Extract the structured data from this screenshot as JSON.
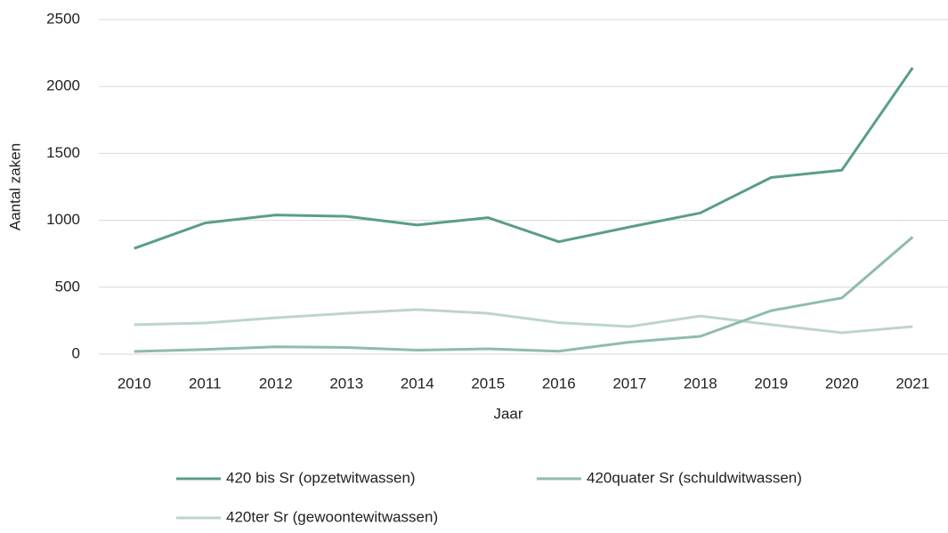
{
  "chart_data": {
    "type": "line",
    "x_label": "Jaar",
    "y_label": "Aantal zaken",
    "categories": [
      "2010",
      "2011",
      "2012",
      "2013",
      "2014",
      "2015",
      "2016",
      "2017",
      "2018",
      "2019",
      "2020",
      "2021"
    ],
    "series": [
      {
        "name": "420 bis Sr (opzetwitwassen)",
        "color": "#5a9e85",
        "values": [
          790,
          980,
          1040,
          1030,
          965,
          1020,
          840,
          950,
          1055,
          1320,
          1375,
          2140
        ]
      },
      {
        "name": "420quater Sr (schuldwitwassen)",
        "color": "#8fbcaa",
        "values": [
          20,
          35,
          55,
          50,
          30,
          40,
          22,
          90,
          133,
          325,
          420,
          875
        ]
      },
      {
        "name": "420ter Sr (gewoontewitwassen)",
        "color": "#bcd6c9",
        "values": [
          220,
          233,
          272,
          305,
          333,
          305,
          235,
          206,
          285,
          220,
          160,
          206
        ]
      }
    ],
    "ylim": [
      0,
      2500
    ],
    "yticks": [
      0,
      500,
      1000,
      1500,
      2000,
      2500
    ],
    "grid": true,
    "legend": "bottom"
  }
}
